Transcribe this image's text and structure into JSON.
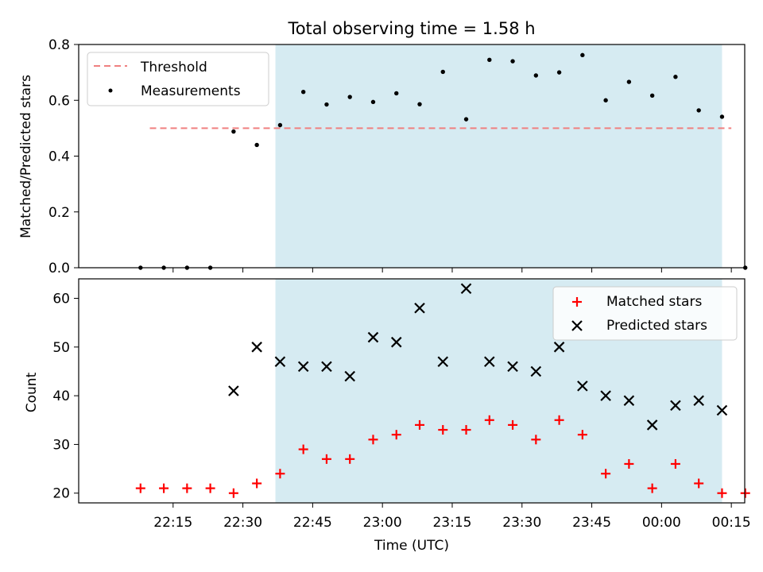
{
  "chart_data": [
    {
      "type": "scatter",
      "title": "Total observing time = 1.58 h",
      "xlabel": "",
      "ylabel": "Matched/Predicted stars",
      "ylim": [
        0,
        0.8
      ],
      "yticks": [
        "0.0",
        "0.2",
        "0.4",
        "0.6",
        "0.8"
      ],
      "legend": {
        "placement": "top-left",
        "entries": [
          {
            "label": "Threshold",
            "style": "dashed-line",
            "color": "#f08080"
          },
          {
            "label": "Measurements",
            "style": "dot",
            "color": "#000000"
          }
        ]
      },
      "threshold": {
        "value": 0.5,
        "x_start": "22:10",
        "x_end": "00:15",
        "color": "#f08080"
      },
      "shaded_region": {
        "x_start": "22:37",
        "x_end": "00:13",
        "color": "#add8e6"
      },
      "series": [
        {
          "name": "Measurements",
          "color": "#000000",
          "x": [
            "22:08",
            "22:13",
            "22:18",
            "22:23",
            "22:28",
            "22:33",
            "22:38",
            "22:43",
            "22:48",
            "22:53",
            "22:58",
            "23:03",
            "23:08",
            "23:13",
            "23:18",
            "23:23",
            "23:28",
            "23:33",
            "23:38",
            "23:43",
            "23:48",
            "23:53",
            "23:58",
            "00:03",
            "00:08",
            "00:13",
            "00:18"
          ],
          "y": [
            0.0,
            0.0,
            0.0,
            0.0,
            0.488,
            0.44,
            0.511,
            0.63,
            0.585,
            0.612,
            0.594,
            0.625,
            0.586,
            0.702,
            0.532,
            0.745,
            0.74,
            0.689,
            0.7,
            0.762,
            0.6,
            0.666,
            0.617,
            0.684,
            0.564,
            0.541,
            0.0
          ]
        }
      ]
    },
    {
      "type": "scatter",
      "title": "",
      "xlabel": "Time (UTC)",
      "ylabel": "Count",
      "ylim": [
        18,
        64
      ],
      "yticks": [
        "20",
        "30",
        "40",
        "50",
        "60"
      ],
      "xticks": [
        "22:15",
        "22:30",
        "22:45",
        "23:00",
        "23:15",
        "23:30",
        "23:45",
        "00:00",
        "00:15"
      ],
      "legend": {
        "placement": "top-right",
        "entries": [
          {
            "label": "Matched stars",
            "style": "plus",
            "color": "#ff0000"
          },
          {
            "label": "Predicted stars",
            "style": "x",
            "color": "#000000"
          }
        ]
      },
      "shaded_region": {
        "x_start": "22:37",
        "x_end": "00:13",
        "color": "#add8e6"
      },
      "series": [
        {
          "name": "Matched stars",
          "color": "#ff0000",
          "x": [
            "22:08",
            "22:13",
            "22:18",
            "22:23",
            "22:28",
            "22:33",
            "22:38",
            "22:43",
            "22:48",
            "22:53",
            "22:58",
            "23:03",
            "23:08",
            "23:13",
            "23:18",
            "23:23",
            "23:28",
            "23:33",
            "23:38",
            "23:43",
            "23:48",
            "23:53",
            "23:58",
            "00:03",
            "00:08",
            "00:13",
            "00:18"
          ],
          "y": [
            21,
            21,
            21,
            21,
            20,
            22,
            24,
            29,
            27,
            27,
            31,
            32,
            34,
            33,
            33,
            35,
            34,
            31,
            35,
            32,
            24,
            26,
            21,
            26,
            22,
            20,
            20
          ]
        },
        {
          "name": "Predicted stars",
          "color": "#000000",
          "x": [
            "22:28",
            "22:33",
            "22:38",
            "22:43",
            "22:48",
            "22:53",
            "22:58",
            "23:03",
            "23:08",
            "23:13",
            "23:18",
            "23:23",
            "23:28",
            "23:33",
            "23:38",
            "23:43",
            "23:48",
            "23:53",
            "23:58",
            "00:03",
            "00:08",
            "00:13"
          ],
          "y": [
            41,
            50,
            47,
            46,
            46,
            44,
            52,
            51,
            58,
            47,
            62,
            47,
            46,
            45,
            50,
            42,
            40,
            39,
            34,
            38,
            39,
            37
          ]
        }
      ]
    }
  ]
}
